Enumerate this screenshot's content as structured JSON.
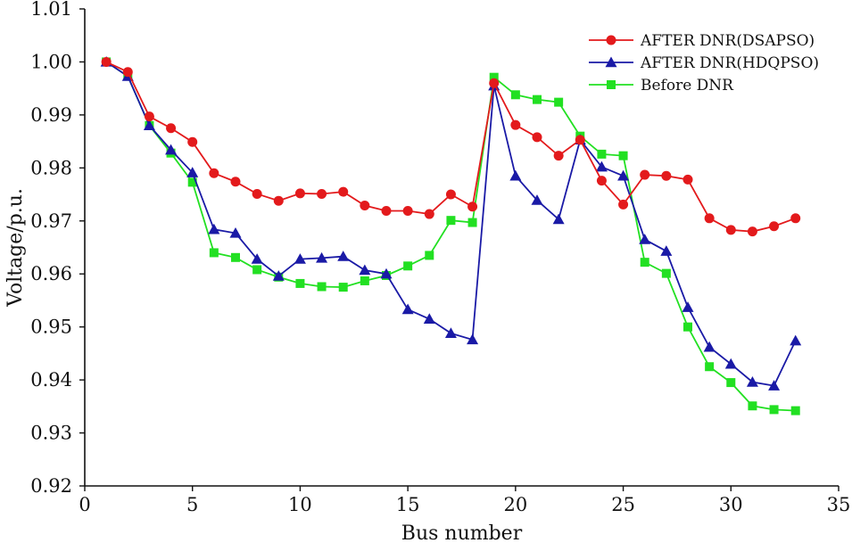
{
  "chart_data": {
    "type": "line",
    "xlabel": "Bus number",
    "ylabel": "Voltage/p.u.",
    "xlim": [
      0,
      35
    ],
    "ylim": [
      0.92,
      1.01
    ],
    "xticks": [
      0,
      5,
      10,
      15,
      20,
      25,
      30,
      35
    ],
    "xtick_labels": [
      "0",
      "5",
      "10",
      "15",
      "20",
      "25",
      "30",
      "35"
    ],
    "yticks": [
      0.92,
      0.93,
      0.94,
      0.95,
      0.96,
      0.97,
      0.98,
      0.99,
      1.0,
      1.01
    ],
    "ytick_labels": [
      "0.92",
      "0.93",
      "0.94",
      "0.95",
      "0.96",
      "0.97",
      "0.98",
      "0.99",
      "1.00",
      "1.01"
    ],
    "grid": false,
    "legend_position": "top-right",
    "x": [
      1,
      2,
      3,
      4,
      5,
      6,
      7,
      8,
      9,
      10,
      11,
      12,
      13,
      14,
      15,
      16,
      17,
      18,
      19,
      20,
      21,
      22,
      23,
      24,
      25,
      26,
      27,
      28,
      29,
      30,
      31,
      32,
      33
    ],
    "series": [
      {
        "name": "AFTER DNR(DSAPSO)",
        "color": "#e31a1c",
        "marker": "circle",
        "values": [
          1.0,
          0.9981,
          0.9897,
          0.9875,
          0.9849,
          0.979,
          0.9774,
          0.9751,
          0.9738,
          0.9752,
          0.9751,
          0.9755,
          0.9729,
          0.9719,
          0.9719,
          0.9713,
          0.975,
          0.9727,
          0.996,
          0.9881,
          0.9858,
          0.9823,
          0.9853,
          0.9776,
          0.9731,
          0.9787,
          0.9785,
          0.9778,
          0.9705,
          0.9683,
          0.968,
          0.969,
          0.9705
        ]
      },
      {
        "name": "AFTER DNR(HDQPSO)",
        "color": "#1a1aa6",
        "marker": "triangle",
        "values": [
          1.0,
          0.9973,
          0.988,
          0.9834,
          0.9791,
          0.9684,
          0.9677,
          0.9628,
          0.9596,
          0.9628,
          0.963,
          0.9633,
          0.9607,
          0.96,
          0.9533,
          0.9515,
          0.9488,
          0.9476,
          0.9955,
          0.9785,
          0.9739,
          0.9703,
          0.9853,
          0.9802,
          0.9785,
          0.9665,
          0.9643,
          0.9537,
          0.9462,
          0.943,
          0.9396,
          0.9389,
          0.9474
        ]
      },
      {
        "name": "Before DNR",
        "color": "#22e022",
        "marker": "square",
        "values": [
          1.0,
          0.9973,
          0.988,
          0.9828,
          0.9773,
          0.964,
          0.9631,
          0.9608,
          0.9594,
          0.9582,
          0.9576,
          0.9575,
          0.9587,
          0.9597,
          0.9615,
          0.9635,
          0.9701,
          0.9697,
          0.9971,
          0.9938,
          0.9929,
          0.9924,
          0.986,
          0.9826,
          0.9823,
          0.9622,
          0.9601,
          0.95,
          0.9425,
          0.9395,
          0.9351,
          0.9344,
          0.9342
        ]
      }
    ]
  }
}
